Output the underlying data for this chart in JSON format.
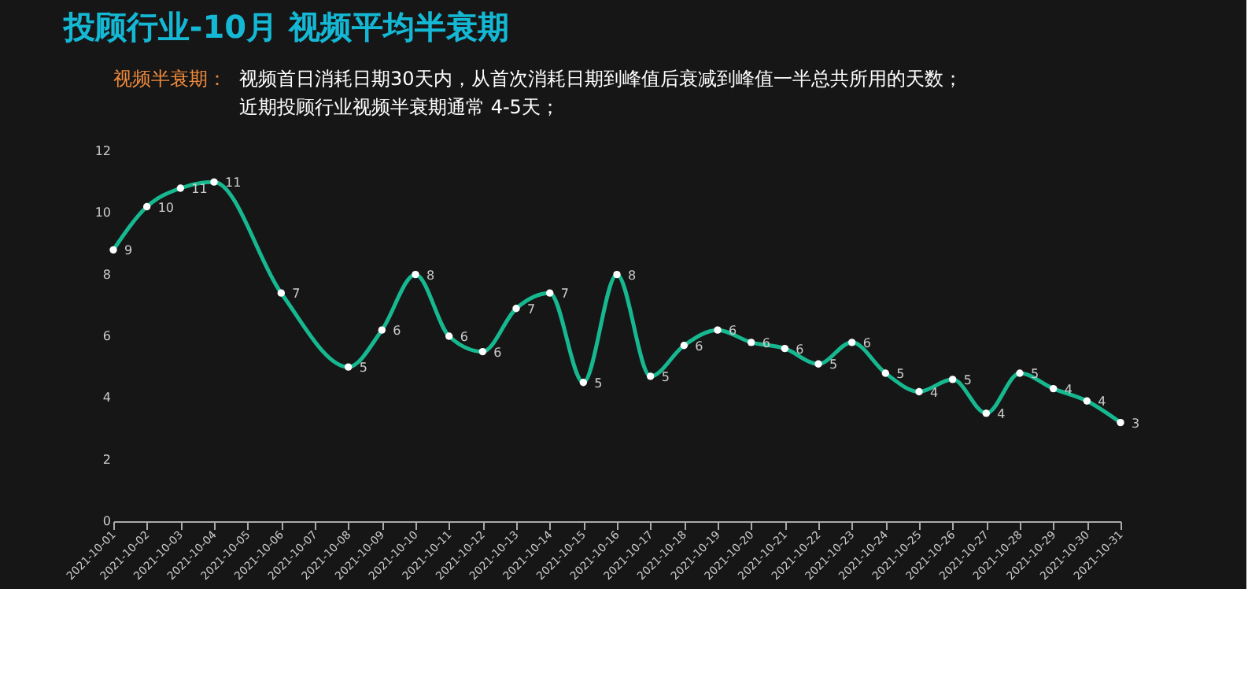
{
  "chart_data": {
    "type": "line",
    "title": "投顾行业-10月 视频平均半衰期",
    "annotations": [
      "视频半衰期：",
      "视频首日消耗日期30天内，从首次消耗日期到峰值后衰减到峰值一半总共所用的天数；",
      "近期投顾行业视频半衰期通常 4-5天；"
    ],
    "series": [
      {
        "color": "#17b890",
        "x": [
          "2021-10-01",
          "2021-10-02",
          "2021-10-03",
          "2021-10-04",
          "2021-10-06",
          "2021-10-08",
          "2021-10-09",
          "2021-10-10",
          "2021-10-11",
          "2021-10-12",
          "2021-10-13",
          "2021-10-14",
          "2021-10-15",
          "2021-10-16",
          "2021-10-17",
          "2021-10-18",
          "2021-10-19",
          "2021-10-20",
          "2021-10-21",
          "2021-10-22",
          "2021-10-23",
          "2021-10-24",
          "2021-10-25",
          "2021-10-26",
          "2021-10-27",
          "2021-10-28",
          "2021-10-29",
          "2021-10-30",
          "2021-10-31"
        ],
        "values": [
          8.8,
          10.2,
          10.8,
          11.0,
          7.4,
          5.0,
          6.2,
          8.0,
          6.0,
          5.5,
          6.9,
          7.4,
          4.5,
          8.0,
          4.7,
          5.7,
          6.2,
          5.8,
          5.6,
          5.1,
          5.8,
          4.8,
          4.2,
          4.6,
          3.5,
          4.8,
          4.3,
          3.9,
          3.2
        ],
        "value_labels": [
          "9",
          "10",
          "11",
          "11",
          "7",
          "5",
          "6",
          "8",
          "6",
          "6",
          "7",
          "7",
          "5",
          "8",
          "5",
          "6",
          "6",
          "6",
          "6",
          "5",
          "6",
          "5",
          "4",
          "5",
          "4",
          "5",
          "4",
          "4",
          "3"
        ]
      }
    ],
    "xlim": [
      "2021-10-01",
      "2021-10-31"
    ],
    "xticks": [
      "2021-10-01",
      "2021-10-02",
      "2021-10-03",
      "2021-10-04",
      "2021-10-05",
      "2021-10-06",
      "2021-10-07",
      "2021-10-08",
      "2021-10-09",
      "2021-10-10",
      "2021-10-11",
      "2021-10-12",
      "2021-10-13",
      "2021-10-14",
      "2021-10-15",
      "2021-10-16",
      "2021-10-17",
      "2021-10-18",
      "2021-10-19",
      "2021-10-20",
      "2021-10-21",
      "2021-10-22",
      "2021-10-23",
      "2021-10-24",
      "2021-10-25",
      "2021-10-26",
      "2021-10-27",
      "2021-10-28",
      "2021-10-29",
      "2021-10-30",
      "2021-10-31"
    ],
    "ylim": [
      0,
      12
    ],
    "yticks": [
      0,
      2,
      4,
      6,
      8,
      10,
      12
    ],
    "grid": false,
    "marker": "circle",
    "line_style": "solid"
  }
}
